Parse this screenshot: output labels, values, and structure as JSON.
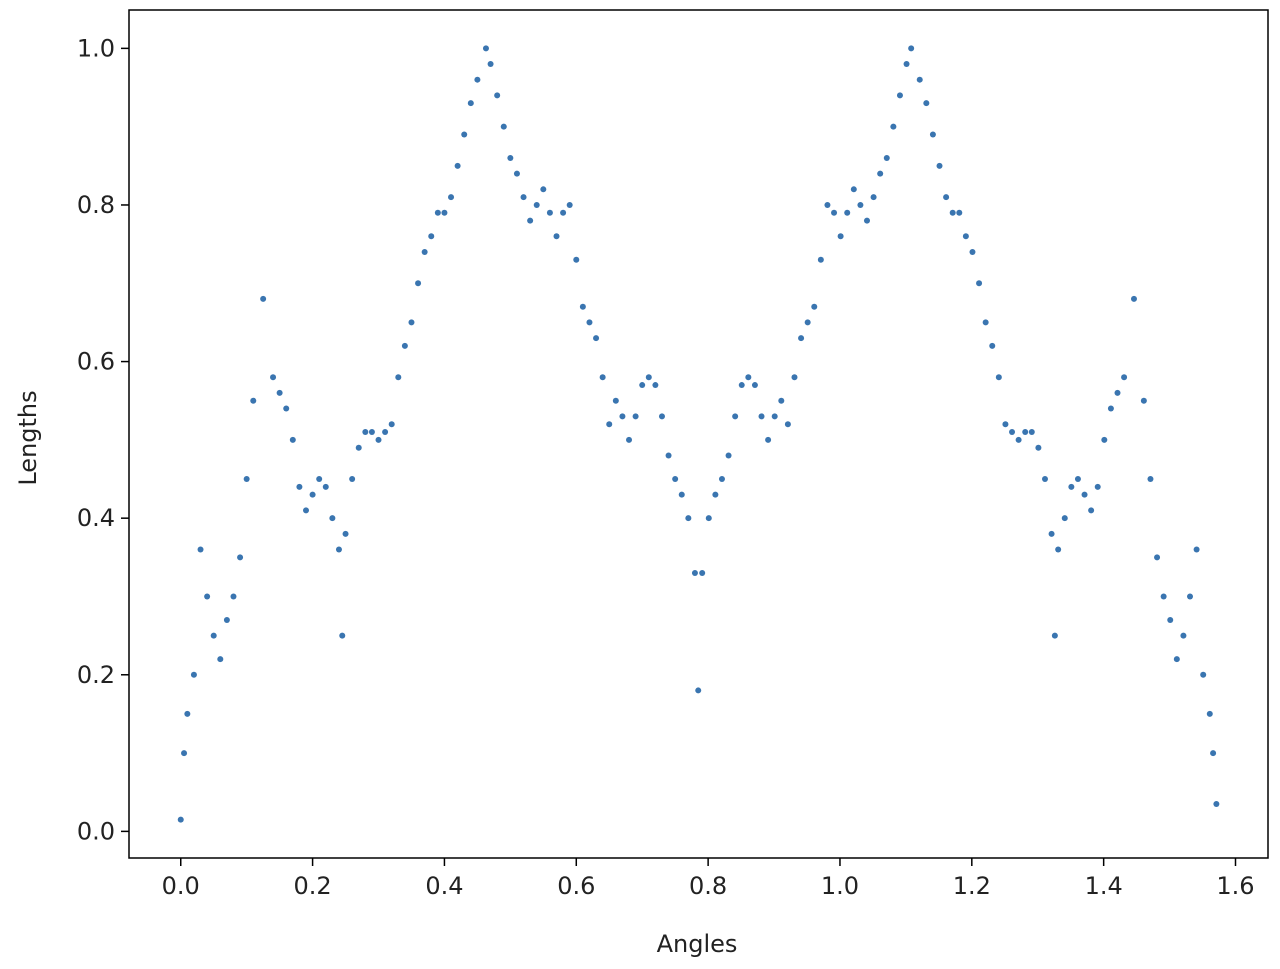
{
  "chart_data": {
    "type": "scatter",
    "xlabel": "Angles",
    "ylabel": "Lengths",
    "color": "#3a75b0",
    "x": [
      0,
      0.005,
      0.01,
      0.02,
      0.03,
      0.04,
      0.05,
      0.06,
      0.07,
      0.08,
      0.09,
      0.1,
      0.11,
      0.125,
      0.14,
      0.15,
      0.16,
      0.17,
      0.18,
      0.19,
      0.2,
      0.21,
      0.22,
      0.23,
      0.24,
      0.245,
      0.25,
      0.26,
      0.27,
      0.28,
      0.29,
      0.3,
      0.31,
      0.32,
      0.33,
      0.34,
      0.35,
      0.36,
      0.37,
      0.38,
      0.39,
      0.4,
      0.41,
      0.42,
      0.43,
      0.44,
      0.45,
      0.463,
      0.47,
      0.48,
      0.49,
      0.5,
      0.51,
      0.52,
      0.53,
      0.54,
      0.55,
      0.56,
      0.57,
      0.58,
      0.59,
      0.6,
      0.61,
      0.62,
      0.63,
      0.64,
      0.65,
      0.66,
      0.67,
      0.68,
      0.69,
      0.7,
      0.71,
      0.72,
      0.73,
      0.74,
      0.75,
      0.76,
      0.77,
      0.78,
      0.785,
      0.791,
      0.801,
      0.811,
      0.821,
      0.831,
      0.841,
      0.851,
      0.861,
      0.871,
      0.881,
      0.891,
      0.901,
      0.911,
      0.921,
      0.931,
      0.941,
      0.951,
      0.961,
      0.971,
      0.981,
      0.991,
      1.001,
      1.011,
      1.021,
      1.031,
      1.041,
      1.051,
      1.061,
      1.071,
      1.081,
      1.091,
      1.101,
      1.108,
      1.121,
      1.131,
      1.141,
      1.151,
      1.161,
      1.171,
      1.181,
      1.191,
      1.201,
      1.211,
      1.221,
      1.231,
      1.241,
      1.251,
      1.261,
      1.271,
      1.281,
      1.291,
      1.301,
      1.311,
      1.321,
      1.326,
      1.331,
      1.341,
      1.351,
      1.361,
      1.371,
      1.381,
      1.391,
      1.401,
      1.411,
      1.421,
      1.431,
      1.446,
      1.461,
      1.471,
      1.481,
      1.491,
      1.501,
      1.511,
      1.521,
      1.531,
      1.541,
      1.551,
      1.561,
      1.566,
      1.571
    ],
    "values": [
      0.015,
      0.1,
      0.15,
      0.2,
      0.36,
      0.3,
      0.25,
      0.22,
      0.27,
      0.3,
      0.35,
      0.45,
      0.55,
      0.68,
      0.58,
      0.56,
      0.54,
      0.5,
      0.44,
      0.41,
      0.43,
      0.45,
      0.44,
      0.4,
      0.36,
      0.25,
      0.38,
      0.45,
      0.49,
      0.51,
      0.51,
      0.5,
      0.51,
      0.52,
      0.58,
      0.62,
      0.65,
      0.7,
      0.74,
      0.76,
      0.79,
      0.79,
      0.81,
      0.85,
      0.89,
      0.93,
      0.96,
      1.0,
      0.98,
      0.94,
      0.9,
      0.86,
      0.84,
      0.81,
      0.78,
      0.8,
      0.82,
      0.79,
      0.76,
      0.79,
      0.8,
      0.73,
      0.67,
      0.65,
      0.63,
      0.58,
      0.52,
      0.55,
      0.53,
      0.5,
      0.53,
      0.57,
      0.58,
      0.57,
      0.53,
      0.48,
      0.45,
      0.43,
      0.4,
      0.33,
      0.18,
      0.33,
      0.4,
      0.43,
      0.45,
      0.48,
      0.53,
      0.57,
      0.58,
      0.57,
      0.53,
      0.5,
      0.53,
      0.55,
      0.52,
      0.58,
      0.63,
      0.65,
      0.67,
      0.73,
      0.8,
      0.79,
      0.76,
      0.79,
      0.82,
      0.8,
      0.78,
      0.81,
      0.84,
      0.86,
      0.9,
      0.94,
      0.98,
      1.0,
      0.96,
      0.93,
      0.89,
      0.85,
      0.81,
      0.79,
      0.79,
      0.76,
      0.74,
      0.7,
      0.65,
      0.62,
      0.58,
      0.52,
      0.51,
      0.5,
      0.51,
      0.51,
      0.49,
      0.45,
      0.38,
      0.25,
      0.36,
      0.4,
      0.44,
      0.45,
      0.43,
      0.41,
      0.44,
      0.5,
      0.54,
      0.56,
      0.58,
      0.68,
      0.55,
      0.45,
      0.35,
      0.3,
      0.27,
      0.22,
      0.25,
      0.3,
      0.36,
      0.2,
      0.15,
      0.1,
      0.035
    ],
    "xlim": [
      -0.0785,
      1.6493
    ],
    "ylim": [
      -0.034,
      1.049
    ],
    "xticks": [
      {
        "value": 0,
        "label": "0.0"
      },
      {
        "value": 0.2,
        "label": "0.2"
      },
      {
        "value": 0.4,
        "label": "0.4"
      },
      {
        "value": 0.6,
        "label": "0.6"
      },
      {
        "value": 0.8,
        "label": "0.8"
      },
      {
        "value": 1,
        "label": "1.0"
      },
      {
        "value": 1.2,
        "label": "1.2"
      },
      {
        "value": 1.4,
        "label": "1.4"
      },
      {
        "value": 1.6,
        "label": "1.6"
      }
    ],
    "yticks": [
      {
        "value": 0,
        "label": "0.0"
      },
      {
        "value": 0.2,
        "label": "0.2"
      },
      {
        "value": 0.4,
        "label": "0.4"
      },
      {
        "value": 0.6,
        "label": "0.6"
      },
      {
        "value": 0.8,
        "label": "0.8"
      },
      {
        "value": 1,
        "label": "1.0"
      }
    ]
  }
}
